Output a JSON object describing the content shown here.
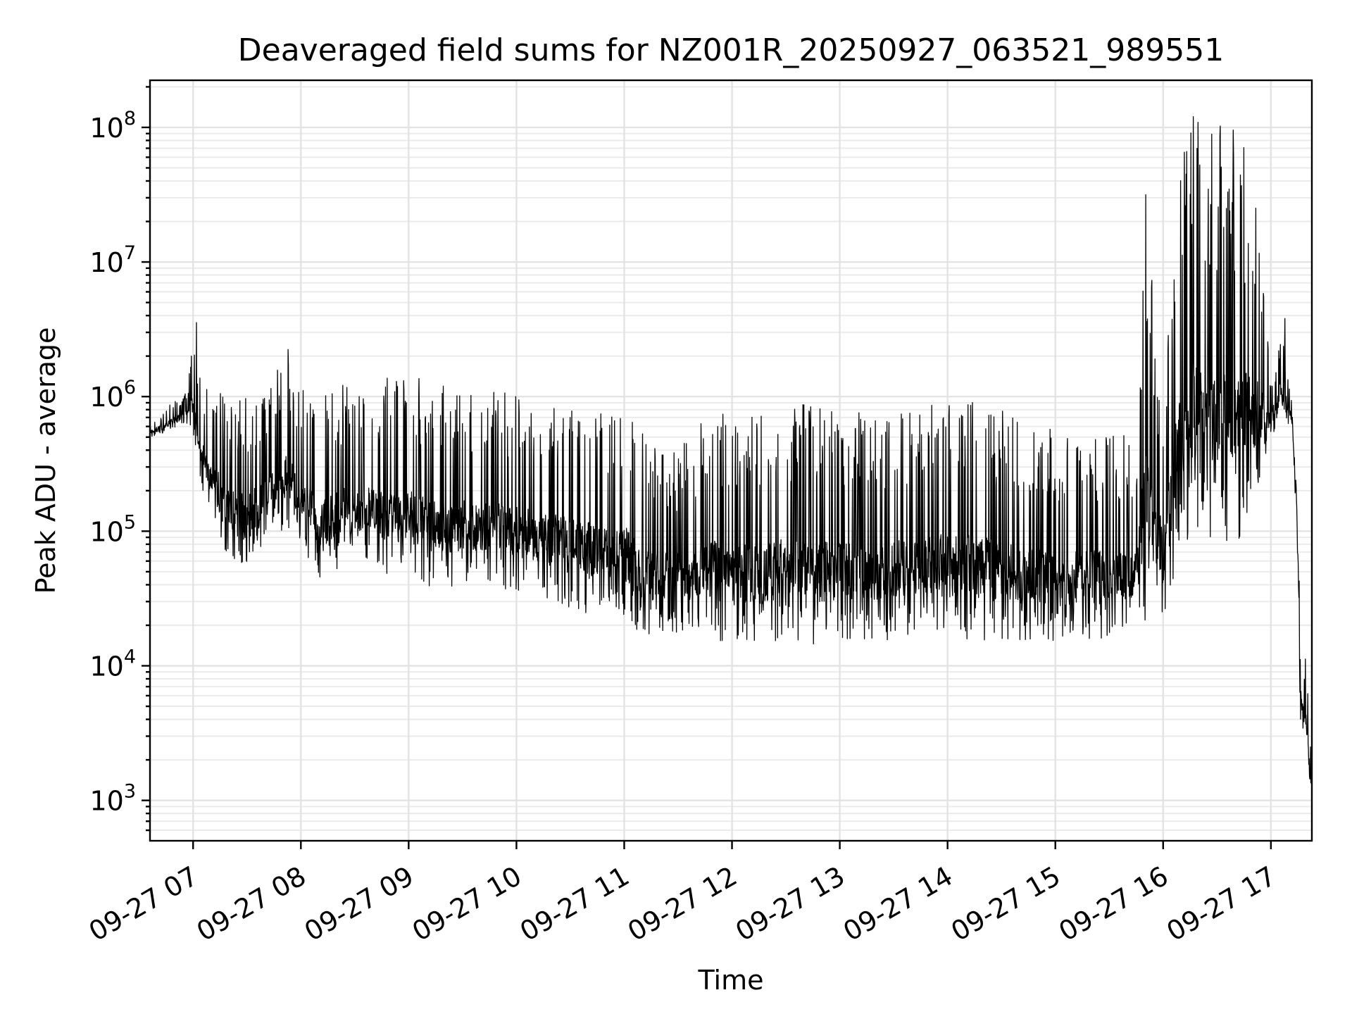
{
  "chart_data": {
    "type": "line",
    "title": "Deaveraged field sums for NZ001R_20250927_063521_989551",
    "xlabel": "Time",
    "ylabel": "Peak ADU - average",
    "yscale": "log",
    "grid": true,
    "x_range_hours": [
      6.6,
      17.38
    ],
    "y_range_log10": [
      2.7,
      8.35
    ],
    "xticks": [
      {
        "hour": 7,
        "label": "09-27 07"
      },
      {
        "hour": 8,
        "label": "09-27 08"
      },
      {
        "hour": 9,
        "label": "09-27 09"
      },
      {
        "hour": 10,
        "label": "09-27 10"
      },
      {
        "hour": 11,
        "label": "09-27 11"
      },
      {
        "hour": 12,
        "label": "09-27 12"
      },
      {
        "hour": 13,
        "label": "09-27 13"
      },
      {
        "hour": 14,
        "label": "09-27 14"
      },
      {
        "hour": 15,
        "label": "09-27 15"
      },
      {
        "hour": 16,
        "label": "09-27 16"
      },
      {
        "hour": 17,
        "label": "09-27 17"
      }
    ],
    "yticks": [
      {
        "exp": 3,
        "base": "10",
        "sup": "3"
      },
      {
        "exp": 4,
        "base": "10",
        "sup": "4"
      },
      {
        "exp": 5,
        "base": "10",
        "sup": "5"
      },
      {
        "exp": 6,
        "base": "10",
        "sup": "6"
      },
      {
        "exp": 7,
        "base": "10",
        "sup": "7"
      },
      {
        "exp": 8,
        "base": "10",
        "sup": "8"
      }
    ],
    "series": [
      {
        "name": "Peak ADU - average",
        "color": "#000000",
        "envelope_note": "Densely sampled, highly noisy signal; envelope given as [hour, log10 lower, log10 upper]",
        "envelope": [
          [
            6.6,
            5.7,
            5.8
          ],
          [
            6.8,
            5.75,
            5.95
          ],
          [
            6.95,
            5.8,
            6.05
          ],
          [
            7.0,
            5.75,
            6.55
          ],
          [
            7.05,
            5.4,
            6.15
          ],
          [
            7.15,
            5.15,
            6.1
          ],
          [
            7.3,
            4.8,
            6.05
          ],
          [
            7.5,
            4.7,
            6.0
          ],
          [
            7.7,
            4.9,
            6.1
          ],
          [
            7.85,
            5.0,
            6.35
          ],
          [
            8.0,
            4.9,
            6.05
          ],
          [
            8.2,
            4.6,
            6.05
          ],
          [
            8.4,
            4.75,
            6.1
          ],
          [
            8.6,
            4.7,
            6.15
          ],
          [
            8.8,
            4.65,
            6.18
          ],
          [
            9.0,
            4.65,
            6.15
          ],
          [
            9.25,
            4.55,
            6.12
          ],
          [
            9.5,
            4.6,
            6.1
          ],
          [
            9.75,
            4.6,
            6.05
          ],
          [
            10.0,
            4.55,
            6.02
          ],
          [
            10.25,
            4.5,
            6.0
          ],
          [
            10.5,
            4.4,
            6.0
          ],
          [
            10.75,
            4.35,
            5.98
          ],
          [
            11.0,
            4.35,
            5.95
          ],
          [
            11.2,
            4.2,
            5.7
          ],
          [
            11.5,
            4.25,
            5.6
          ],
          [
            11.8,
            4.2,
            5.92
          ],
          [
            12.0,
            4.15,
            5.85
          ],
          [
            12.25,
            4.15,
            5.9
          ],
          [
            12.5,
            4.2,
            5.95
          ],
          [
            12.75,
            4.15,
            5.95
          ],
          [
            13.0,
            4.2,
            5.9
          ],
          [
            13.25,
            4.15,
            5.9
          ],
          [
            13.5,
            4.2,
            5.85
          ],
          [
            13.75,
            4.25,
            5.95
          ],
          [
            14.0,
            4.2,
            5.98
          ],
          [
            14.25,
            4.2,
            6.05
          ],
          [
            14.5,
            4.15,
            5.9
          ],
          [
            14.75,
            4.2,
            5.8
          ],
          [
            15.0,
            4.15,
            5.75
          ],
          [
            15.25,
            4.2,
            5.72
          ],
          [
            15.5,
            4.2,
            5.7
          ],
          [
            15.75,
            4.25,
            5.75
          ],
          [
            15.85,
            4.3,
            7.5
          ],
          [
            16.0,
            4.3,
            5.95
          ],
          [
            16.15,
            4.8,
            7.8
          ],
          [
            16.3,
            5.0,
            8.05
          ],
          [
            16.5,
            4.9,
            7.95
          ],
          [
            16.7,
            4.85,
            7.9
          ],
          [
            16.85,
            5.2,
            7.5
          ],
          [
            17.0,
            5.65,
            6.15
          ],
          [
            17.1,
            5.95,
            6.45
          ],
          [
            17.2,
            5.7,
            6.05
          ],
          [
            17.25,
            4.7,
            5.6
          ],
          [
            17.27,
            3.6,
            4.2
          ],
          [
            17.3,
            3.5,
            4.0
          ],
          [
            17.33,
            3.4,
            4.05
          ],
          [
            17.38,
            2.95,
            3.2
          ]
        ],
        "spikes": [
          [
            7.03,
            6.55
          ],
          [
            7.88,
            6.35
          ],
          [
            15.84,
            7.5
          ],
          [
            16.22,
            7.82
          ],
          [
            16.28,
            8.08
          ],
          [
            16.45,
            7.95
          ],
          [
            16.53,
            8.01
          ],
          [
            16.65,
            7.98
          ],
          [
            16.75,
            7.85
          ],
          [
            16.86,
            7.4
          ],
          [
            17.13,
            6.58
          ],
          [
            17.32,
            4.05
          ]
        ]
      }
    ]
  }
}
